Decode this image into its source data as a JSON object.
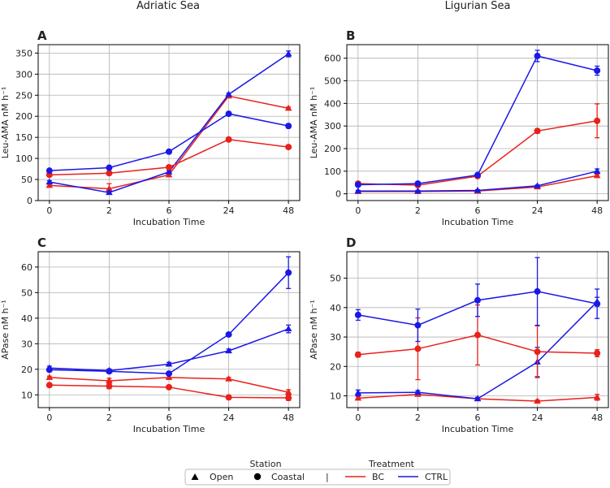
{
  "column_titles": [
    "Adriatic Sea",
    "Ligurian Sea"
  ],
  "colors": {
    "BC": "#e8211b",
    "CTRL": "#1a18e6"
  },
  "legend": {
    "station_title": "Station",
    "treatment_title": "Treatment",
    "station_items": [
      {
        "label": "Open",
        "marker": "triangle"
      },
      {
        "label": "Coastal",
        "marker": "circle"
      }
    ],
    "separator": "|",
    "treatment_items": [
      {
        "label": "BC",
        "color": "#e8211b"
      },
      {
        "label": "CTRL",
        "color": "#1a18e6"
      }
    ]
  },
  "chart_data": [
    {
      "type": "line",
      "panel": "A",
      "column": "Adriatic Sea",
      "xlabel": "Incubation Time",
      "ylabel": "Leu-AMA nM h⁻¹",
      "categories": [
        "0",
        "2",
        "6",
        "24",
        "48"
      ],
      "ylim": [
        0,
        370
      ],
      "yticks": [
        0,
        50,
        100,
        150,
        200,
        250,
        300,
        350
      ],
      "grid": true,
      "series": [
        {
          "name": "BC Open",
          "treatment": "BC",
          "station": "Open",
          "values": [
            36,
            28,
            61,
            248,
            219
          ],
          "errors": [
            3,
            12,
            4,
            3,
            3
          ]
        },
        {
          "name": "CTRL Open",
          "treatment": "CTRL",
          "station": "Open",
          "values": [
            44,
            19,
            68,
            252,
            348
          ],
          "errors": [
            3,
            3,
            3,
            3,
            7
          ]
        },
        {
          "name": "BC Coastal",
          "treatment": "BC",
          "station": "Coastal",
          "values": [
            61,
            65,
            79,
            145,
            127
          ],
          "errors": [
            2,
            2,
            2,
            2,
            2
          ]
        },
        {
          "name": "CTRL Coastal",
          "treatment": "CTRL",
          "station": "Coastal",
          "values": [
            71,
            78,
            116,
            206,
            177
          ],
          "errors": [
            2,
            2,
            3,
            3,
            5
          ]
        }
      ]
    },
    {
      "type": "line",
      "panel": "B",
      "column": "Ligurian Sea",
      "xlabel": "Incubation Time",
      "ylabel": "Leu-AMA nM h⁻¹",
      "categories": [
        "0",
        "2",
        "6",
        "24",
        "48"
      ],
      "ylim": [
        -30,
        660
      ],
      "yticks": [
        0,
        100,
        200,
        300,
        400,
        500,
        600
      ],
      "grid": true,
      "series": [
        {
          "name": "BC Open",
          "treatment": "BC",
          "station": "Open",
          "values": [
            10,
            10,
            12,
            30,
            80
          ],
          "errors": [
            3,
            3,
            3,
            4,
            6
          ]
        },
        {
          "name": "CTRL Open",
          "treatment": "CTRL",
          "station": "Open",
          "values": [
            12,
            12,
            15,
            35,
            100
          ],
          "errors": [
            3,
            3,
            3,
            4,
            10
          ]
        },
        {
          "name": "BC Coastal",
          "treatment": "BC",
          "station": "Coastal",
          "values": [
            45,
            38,
            78,
            278,
            323
          ],
          "errors": [
            5,
            5,
            6,
            10,
            75
          ]
        },
        {
          "name": "CTRL Coastal",
          "treatment": "CTRL",
          "station": "Coastal",
          "values": [
            40,
            45,
            83,
            610,
            545
          ],
          "errors": [
            5,
            5,
            6,
            25,
            20
          ]
        }
      ]
    },
    {
      "type": "line",
      "panel": "C",
      "column": "Adriatic Sea",
      "xlabel": "Incubation Time",
      "ylabel": "APase nM h⁻¹",
      "categories": [
        "0",
        "2",
        "6",
        "24",
        "48"
      ],
      "ylim": [
        5,
        66
      ],
      "yticks": [
        10,
        20,
        30,
        40,
        50,
        60
      ],
      "grid": true,
      "series": [
        {
          "name": "BC Open",
          "treatment": "BC",
          "station": "Open",
          "values": [
            16.8,
            15.5,
            16.8,
            16.2,
            11.0
          ],
          "errors": [
            0.5,
            1.0,
            0.8,
            0.6,
            1.0
          ]
        },
        {
          "name": "CTRL Open",
          "treatment": "CTRL",
          "station": "Open",
          "values": [
            20.5,
            19.5,
            22.0,
            27.2,
            35.8
          ],
          "errors": [
            0.7,
            0.6,
            0.7,
            0.7,
            1.5
          ]
        },
        {
          "name": "BC Coastal",
          "treatment": "BC",
          "station": "Coastal",
          "values": [
            13.8,
            13.4,
            13.0,
            9.0,
            8.8
          ],
          "errors": [
            0.6,
            1.0,
            0.6,
            0.4,
            1.0
          ]
        },
        {
          "name": "CTRL Coastal",
          "treatment": "CTRL",
          "station": "Coastal",
          "values": [
            19.8,
            19.2,
            18.3,
            33.6,
            57.8
          ],
          "errors": [
            0.6,
            0.6,
            0.6,
            0.6,
            6.2
          ]
        }
      ]
    },
    {
      "type": "line",
      "panel": "D",
      "column": "Ligurian Sea",
      "xlabel": "Incubation Time",
      "ylabel": "APase nM h⁻¹",
      "categories": [
        "0",
        "2",
        "6",
        "24",
        "48"
      ],
      "ylim": [
        6,
        59
      ],
      "yticks": [
        10,
        20,
        30,
        40,
        50
      ],
      "grid": true,
      "series": [
        {
          "name": "BC Open",
          "treatment": "BC",
          "station": "Open",
          "values": [
            9.2,
            10.5,
            9.0,
            8.2,
            9.5
          ],
          "errors": [
            0.5,
            0.6,
            0.5,
            0.4,
            1.0
          ]
        },
        {
          "name": "CTRL Open",
          "treatment": "CTRL",
          "station": "Open",
          "values": [
            11.0,
            11.2,
            9.0,
            21.5,
            42.0
          ],
          "errors": [
            1.0,
            0.6,
            0.5,
            5.0,
            1.5
          ]
        },
        {
          "name": "BC Coastal",
          "treatment": "BC",
          "station": "Coastal",
          "values": [
            24.0,
            26.0,
            30.7,
            25.0,
            24.5
          ],
          "errors": [
            0.8,
            10.5,
            10.2,
            8.8,
            1.2
          ]
        },
        {
          "name": "CTRL Coastal",
          "treatment": "CTRL",
          "station": "Coastal",
          "values": [
            37.5,
            34.0,
            42.5,
            45.5,
            41.3
          ],
          "errors": [
            1.8,
            5.5,
            5.5,
            11.5,
            5.0
          ]
        }
      ]
    }
  ]
}
